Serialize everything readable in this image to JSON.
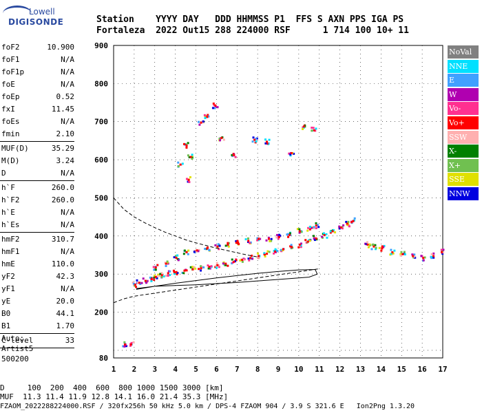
{
  "logo": {
    "line1": "Lowell",
    "line2": "DIGISONDE"
  },
  "header": {
    "labels": [
      "Station",
      "YYYY",
      "DAY",
      "DDD",
      "HHMMSS",
      "P1",
      "FFS",
      "S",
      "AXN",
      "PPS",
      "IGA",
      "PS"
    ],
    "values": [
      "Fortaleza",
      "2022",
      "Out15",
      "288",
      "224000",
      "RSF",
      "",
      "1",
      "714",
      "100",
      "10+",
      "11"
    ],
    "line1": "Station    YYYY DAY   DDD HHMMSS P1  FFS S AXN PPS IGA PS",
    "line2": "Fortaleza  2022 Out15 288 224000 RSF      1 714 100 10+ 11"
  },
  "params": {
    "groups": [
      [
        [
          "foF2",
          "10.900"
        ],
        [
          "foF1",
          "N/A"
        ],
        [
          "foF1p",
          "N/A"
        ],
        [
          "foE",
          "N/A"
        ],
        [
          "foEp",
          "0.52"
        ],
        [
          "fxI",
          "11.45"
        ],
        [
          "foEs",
          "N/A"
        ],
        [
          "fmin",
          "2.10"
        ]
      ],
      [
        [
          "MUF(D)",
          "35.29"
        ],
        [
          "M(D)",
          "3.24"
        ],
        [
          "D",
          "N/A"
        ]
      ],
      [
        [
          "h`F",
          "260.0"
        ],
        [
          "h`F2",
          "260.0"
        ],
        [
          "h`E",
          "N/A"
        ],
        [
          "h`Es",
          "N/A"
        ]
      ],
      [
        [
          "hmF2",
          "310.7"
        ],
        [
          "hmF1",
          "N/A"
        ],
        [
          "hmE",
          "110.0"
        ],
        [
          "yF2",
          "42.3"
        ],
        [
          "yF1",
          "N/A"
        ],
        [
          "yE",
          "20.0"
        ],
        [
          "B0",
          "44.1"
        ],
        [
          "B1",
          "1.70"
        ]
      ],
      [
        [
          "C-level",
          "33"
        ]
      ]
    ]
  },
  "auto": {
    "line1": "Auto:",
    "line2": "Artist5",
    "line3": "500200"
  },
  "legend": {
    "items": [
      {
        "label": "NoVal",
        "color": "#808080"
      },
      {
        "label": "NNE",
        "color": "#00e0ff"
      },
      {
        "label": "E",
        "color": "#40a0ff"
      },
      {
        "label": "W",
        "color": "#b000b0"
      },
      {
        "label": "Vo-",
        "color": "#ff3090"
      },
      {
        "label": "Vo+",
        "color": "#ff0000"
      },
      {
        "label": "SSW",
        "color": "#ffb0b0"
      },
      {
        "label": "X-",
        "color": "#008000"
      },
      {
        "label": "X+",
        "color": "#70c050"
      },
      {
        "label": "SSE",
        "color": "#e0e000"
      },
      {
        "label": "NNW",
        "color": "#0000e0"
      }
    ]
  },
  "muf_table": {
    "row1": "D     100  200  400  600  800 1000 1500 3000 [km]",
    "row2": "MUF  11.3 11.4 11.9 12.8 14.1 16.0 21.4 35.3 [MHz]"
  },
  "footer": "FZAOM_2022288224000.RSF / 320fx256h 50 kHz 5.0 km / DPS-4 FZAOM 904 / 3.9 S 321.6 E   Ion2Png 1.3.20",
  "chart_data": {
    "type": "scatter",
    "title": "",
    "xlabel": "",
    "ylabel": "",
    "xlim": [
      1,
      17
    ],
    "ylim": [
      80,
      900
    ],
    "x_ticks": [
      1,
      2,
      3,
      4,
      5,
      6,
      7,
      8,
      9,
      10,
      11,
      12,
      13,
      14,
      15,
      16,
      17
    ],
    "y_ticks": [
      100,
      200,
      300,
      400,
      500,
      600,
      700,
      800,
      900
    ],
    "y_tick_extra": 80,
    "legend_position": "right",
    "grid": true,
    "series": [
      {
        "kind": "scatter",
        "points": [
          [
            2.0,
            275
          ],
          [
            2.2,
            280
          ],
          [
            2.5,
            285
          ],
          [
            2.8,
            290
          ],
          [
            3.0,
            295
          ],
          [
            3.3,
            300
          ],
          [
            3.6,
            305
          ],
          [
            4.0,
            308
          ],
          [
            4.4,
            312
          ],
          [
            4.8,
            315
          ],
          [
            5.2,
            318
          ],
          [
            5.6,
            322
          ],
          [
            6.0,
            326
          ],
          [
            6.4,
            330
          ],
          [
            6.8,
            335
          ],
          [
            7.2,
            340
          ],
          [
            7.6,
            345
          ],
          [
            8.0,
            350
          ],
          [
            8.4,
            356
          ],
          [
            8.8,
            362
          ],
          [
            9.2,
            368
          ],
          [
            9.6,
            374
          ],
          [
            10.0,
            380
          ],
          [
            10.4,
            388
          ],
          [
            10.8,
            396
          ],
          [
            11.2,
            405
          ],
          [
            11.6,
            415
          ],
          [
            12.0,
            425
          ],
          [
            12.3,
            435
          ],
          [
            12.6,
            442
          ],
          [
            3.0,
            320
          ],
          [
            3.5,
            330
          ],
          [
            4.0,
            345
          ],
          [
            4.5,
            360
          ],
          [
            5.0,
            365
          ],
          [
            5.5,
            370
          ],
          [
            6.0,
            375
          ],
          [
            6.5,
            380
          ],
          [
            7.0,
            385
          ],
          [
            7.5,
            390
          ],
          [
            8.0,
            395
          ],
          [
            8.5,
            395
          ],
          [
            9.0,
            400
          ],
          [
            9.5,
            405
          ],
          [
            10.0,
            415
          ],
          [
            10.5,
            420
          ],
          [
            10.8,
            430
          ],
          [
            13.3,
            380
          ],
          [
            13.6,
            375
          ],
          [
            14.0,
            370
          ],
          [
            14.5,
            360
          ],
          [
            15.0,
            355
          ],
          [
            15.5,
            350
          ],
          [
            16.0,
            345
          ],
          [
            16.5,
            350
          ],
          [
            16.9,
            360
          ],
          [
            4.2,
            590
          ],
          [
            4.5,
            640
          ],
          [
            4.7,
            610
          ],
          [
            5.2,
            700
          ],
          [
            5.5,
            715
          ],
          [
            5.9,
            745
          ],
          [
            6.2,
            660
          ],
          [
            7.8,
            655
          ],
          [
            8.4,
            650
          ],
          [
            10.2,
            690
          ],
          [
            10.7,
            680
          ],
          [
            9.6,
            620
          ],
          [
            6.8,
            615
          ],
          [
            4.6,
            550
          ],
          [
            1.5,
            118
          ],
          [
            1.8,
            118
          ]
        ]
      }
    ],
    "profile_curve": {
      "kind": "line",
      "style": "solid",
      "points": [
        [
          2.1,
          260
        ],
        [
          3,
          268
        ],
        [
          4,
          276
        ],
        [
          5,
          283
        ],
        [
          6,
          290
        ],
        [
          7,
          296
        ],
        [
          8,
          302
        ],
        [
          9,
          307
        ],
        [
          10,
          311
        ],
        [
          10.8,
          312
        ],
        [
          10.9,
          300
        ],
        [
          10.5,
          292
        ],
        [
          10,
          290
        ],
        [
          9,
          286
        ],
        [
          8,
          282
        ],
        [
          7,
          278
        ],
        [
          6,
          275
        ],
        [
          5,
          272
        ],
        [
          4,
          270
        ],
        [
          3,
          268
        ],
        [
          2.1,
          262
        ]
      ]
    },
    "profile_dashed": {
      "kind": "line",
      "style": "dashed",
      "points": [
        [
          1.0,
          500
        ],
        [
          1.5,
          470
        ],
        [
          2.0,
          450
        ],
        [
          2.5,
          435
        ],
        [
          3.0,
          422
        ],
        [
          3.5,
          410
        ],
        [
          4.0,
          400
        ],
        [
          4.5,
          390
        ],
        [
          5.0,
          382
        ],
        [
          5.5,
          375
        ],
        [
          6.0,
          368
        ],
        [
          6.5,
          362
        ],
        [
          7.0,
          356
        ],
        [
          7.5,
          350
        ],
        [
          8.0,
          345
        ]
      ]
    },
    "bottom_dashed": {
      "kind": "line",
      "style": "dashed",
      "points": [
        [
          1.0,
          225
        ],
        [
          1.5,
          235
        ],
        [
          2.0,
          242
        ],
        [
          3.0,
          250
        ],
        [
          4.0,
          258
        ],
        [
          5.0,
          266
        ],
        [
          6.0,
          274
        ],
        [
          7.0,
          282
        ],
        [
          8.0,
          290
        ],
        [
          9.0,
          298
        ],
        [
          10.0,
          306
        ],
        [
          11.0,
          314
        ]
      ]
    }
  }
}
